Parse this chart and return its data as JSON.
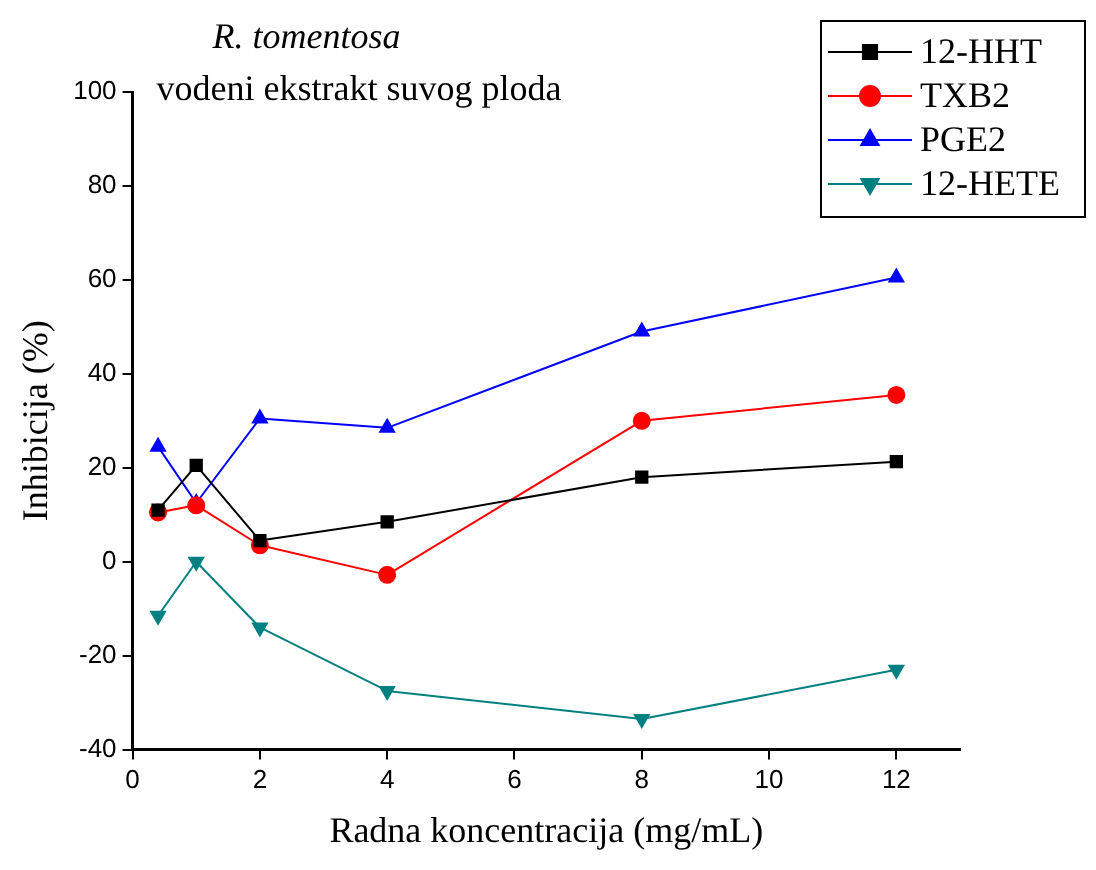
{
  "chart_data": {
    "type": "line",
    "title": "R. tomentosa",
    "subtitle": "vodeni ekstrakt suvog ploda",
    "xlabel": "Radna koncentracija (mg/mL)",
    "ylabel": "Inhibicija (%)",
    "x": [
      0.4,
      1,
      2,
      4,
      8,
      12
    ],
    "series": [
      {
        "name": "12-HHT",
        "color": "#000000",
        "marker": "square",
        "values": [
          11,
          20.5,
          4.5,
          8.5,
          18,
          21.3
        ]
      },
      {
        "name": "TXB2",
        "color": "#ff0000",
        "marker": "circle",
        "values": [
          10.5,
          12,
          3.5,
          -2.8,
          30,
          35.5
        ]
      },
      {
        "name": "PGE2",
        "color": "#0000ff",
        "marker": "triangle",
        "values": [
          24.5,
          12.5,
          30.5,
          28.5,
          49,
          60.5
        ]
      },
      {
        "name": "12-HETE",
        "color": "#008080",
        "marker": "triangle-down",
        "values": [
          -11.5,
          0,
          -14,
          -27.5,
          -33.5,
          -23
        ]
      }
    ],
    "xlim": [
      0,
      13
    ],
    "xticks": [
      0,
      2,
      4,
      6,
      8,
      10,
      12
    ],
    "ylim": [
      -40,
      100
    ],
    "yticks": [
      -40,
      -20,
      0,
      20,
      40,
      60,
      80,
      100
    ],
    "grid": false,
    "legend": "top right",
    "line_style": "solid"
  }
}
